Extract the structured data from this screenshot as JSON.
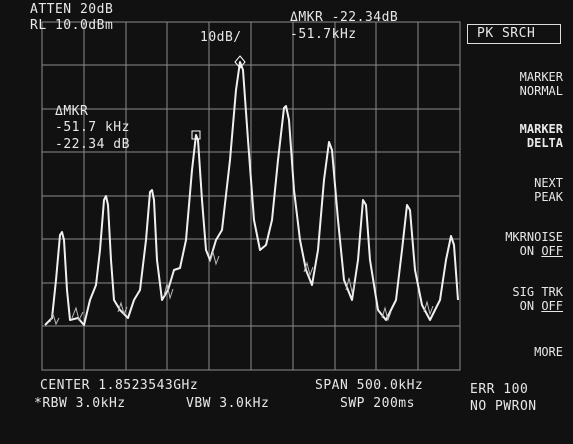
{
  "header": {
    "atten": "ATTEN 20dB",
    "ref_level": "RL 10.0dBm",
    "scale": "10dB/",
    "delta_marker": "ΔMKR -22.34dB",
    "delta_freq": "-51.7kHz",
    "active_function": "PK SRCH"
  },
  "softkeys": [
    [
      "MARKER",
      "NORMAL"
    ],
    [
      "MARKER",
      "DELTA"
    ],
    [
      "NEXT",
      "PEAK"
    ],
    [
      "MKRNOISE",
      "ON",
      "OFF"
    ],
    [
      "SIG TRK",
      "ON",
      "OFF"
    ],
    [
      "MORE"
    ]
  ],
  "marker_readout": {
    "label": "ΔMKR",
    "freq": "-51.7 kHz",
    "amp": "-22.34 dB"
  },
  "footer": {
    "center": "CENTER 1.8523543GHz",
    "span": "SPAN 500.0kHz",
    "err": "ERR 100",
    "rbw": "*RBW 3.0kHz",
    "vbw": "VBW 3.0kHz",
    "sweep": "SWP 200ms",
    "status": "NO PWRON"
  }
}
